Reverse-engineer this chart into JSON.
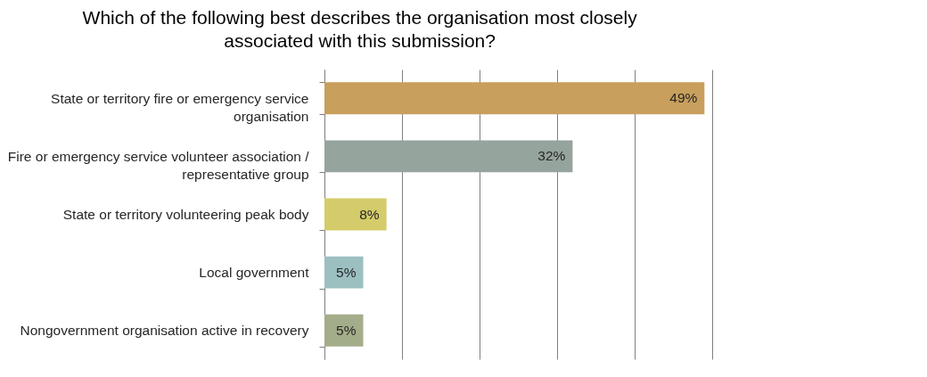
{
  "chart_data": {
    "type": "bar",
    "orientation": "horizontal",
    "title": "Which of the following best describes the organisation most closely associated with this submission?",
    "categories": [
      "State or territory fire or emergency service organisation",
      "Fire or emergency service volunteer association / representative group",
      "State or territory volunteering peak body",
      "Local government",
      "Nongovernment organisation active in recovery"
    ],
    "values": [
      49,
      32,
      8,
      5,
      5
    ],
    "colors": [
      "#c89f5d",
      "#95a49c",
      "#d4cc6a",
      "#9cbfc0",
      "#a3ad8a"
    ],
    "value_labels": [
      "49%",
      "32%",
      "8%",
      "5%",
      "5%"
    ],
    "xlim": [
      0,
      50
    ],
    "xticks": [
      {
        "value": 0,
        "label": null
      },
      {
        "value": 10,
        "label": null
      },
      {
        "value": 20,
        "label": null
      },
      {
        "value": 30,
        "label": null
      },
      {
        "value": 40,
        "label": null
      },
      {
        "value": 50,
        "label": null
      }
    ],
    "grid": "x"
  }
}
